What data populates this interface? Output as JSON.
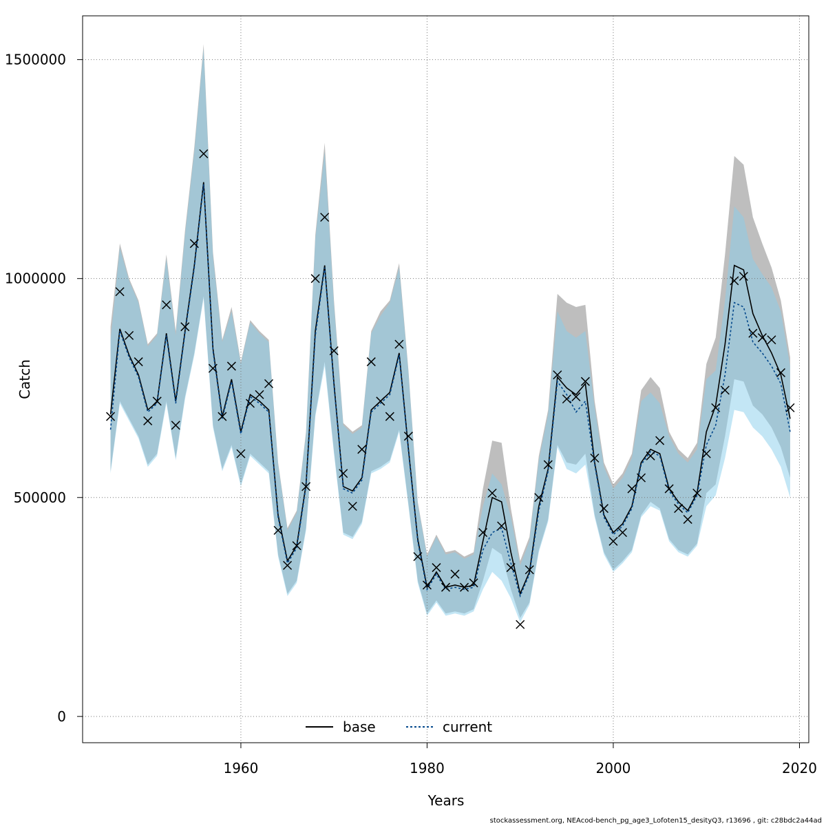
{
  "chart_data": {
    "type": "line",
    "xlabel": "Years",
    "ylabel": "Catch",
    "xlim": [
      1943,
      2021
    ],
    "ylim": [
      -60000,
      1600000
    ],
    "x_ticks": [
      1960,
      1980,
      2000,
      2020
    ],
    "y_ticks": [
      0,
      500000,
      1000000,
      1500000
    ],
    "x_tick_labels": [
      "1960",
      "1980",
      "2000",
      "2020"
    ],
    "y_tick_labels": [
      "0",
      "500000",
      "1000000",
      "1500000"
    ],
    "grid": true,
    "legend_position": "bottom-center",
    "years": [
      1946,
      1947,
      1948,
      1949,
      1950,
      1951,
      1952,
      1953,
      1954,
      1955,
      1956,
      1957,
      1958,
      1959,
      1960,
      1961,
      1962,
      1963,
      1964,
      1965,
      1966,
      1967,
      1968,
      1969,
      1970,
      1971,
      1972,
      1973,
      1974,
      1975,
      1976,
      1977,
      1978,
      1979,
      1980,
      1981,
      1982,
      1983,
      1984,
      1985,
      1986,
      1987,
      1988,
      1989,
      1990,
      1991,
      1992,
      1993,
      1994,
      1995,
      1996,
      1997,
      1998,
      1999,
      2000,
      2001,
      2002,
      2003,
      2004,
      2005,
      2006,
      2007,
      2008,
      2009,
      2010,
      2011,
      2012,
      2013,
      2014,
      2015,
      2016,
      2017,
      2018,
      2019
    ],
    "observed": [
      685000,
      970000,
      870000,
      810000,
      675000,
      720000,
      940000,
      665000,
      890000,
      1080000,
      1285000,
      795000,
      685000,
      800000,
      600000,
      715000,
      735000,
      760000,
      425000,
      345000,
      390000,
      525000,
      1000000,
      1140000,
      835000,
      555000,
      480000,
      610000,
      810000,
      720000,
      685000,
      850000,
      640000,
      365000,
      300000,
      340000,
      295000,
      325000,
      295000,
      305000,
      420000,
      510000,
      435000,
      340000,
      210000,
      335000,
      500000,
      575000,
      780000,
      725000,
      730000,
      765000,
      590000,
      475000,
      400000,
      420000,
      520000,
      545000,
      595000,
      630000,
      520000,
      475000,
      450000,
      510000,
      600000,
      705000,
      745000,
      995000,
      1005000,
      875000,
      865000,
      860000,
      785000,
      705000
    ],
    "series": [
      {
        "name": "base",
        "color": "#000000",
        "band_color": "#bebebe",
        "values": [
          690000,
          885000,
          825000,
          780000,
          700000,
          718000,
          875000,
          720000,
          880000,
          1030000,
          1220000,
          840000,
          685000,
          770000,
          650000,
          735000,
          720000,
          700000,
          460000,
          355000,
          390000,
          530000,
          880000,
          1030000,
          760000,
          525000,
          515000,
          545000,
          700000,
          720000,
          740000,
          830000,
          610000,
          405000,
          295000,
          330000,
          295000,
          300000,
          295000,
          300000,
          400000,
          500000,
          490000,
          375000,
          280000,
          330000,
          480000,
          565000,
          775000,
          750000,
          735000,
          760000,
          580000,
          460000,
          420000,
          440000,
          480000,
          580000,
          610000,
          600000,
          520000,
          490000,
          470000,
          510000,
          650000,
          710000,
          850000,
          1030000,
          1020000,
          920000,
          870000,
          830000,
          780000,
          680000
        ],
        "upper": [
          890000,
          1080000,
          1000000,
          950000,
          850000,
          875000,
          1055000,
          880000,
          1110000,
          1300000,
          1535000,
          1060000,
          860000,
          935000,
          810000,
          905000,
          880000,
          860000,
          580000,
          430000,
          470000,
          650000,
          1100000,
          1310000,
          950000,
          670000,
          650000,
          665000,
          880000,
          925000,
          950000,
          1035000,
          790000,
          490000,
          370000,
          415000,
          375000,
          380000,
          365000,
          375000,
          520000,
          630000,
          625000,
          475000,
          355000,
          410000,
          595000,
          700000,
          965000,
          945000,
          935000,
          940000,
          720000,
          580000,
          530000,
          555000,
          600000,
          745000,
          775000,
          750000,
          650000,
          610000,
          590000,
          625000,
          805000,
          865000,
          1055000,
          1280000,
          1260000,
          1140000,
          1080000,
          1025000,
          950000,
          820000
        ],
        "lower": [
          560000,
          720000,
          680000,
          640000,
          575000,
          600000,
          720000,
          590000,
          730000,
          830000,
          960000,
          665000,
          565000,
          620000,
          530000,
          600000,
          580000,
          560000,
          370000,
          280000,
          310000,
          430000,
          690000,
          810000,
          605000,
          420000,
          410000,
          445000,
          560000,
          570000,
          585000,
          655000,
          485000,
          310000,
          235000,
          265000,
          235000,
          240000,
          235000,
          245000,
          310000,
          385000,
          370000,
          290000,
          225000,
          260000,
          380000,
          450000,
          620000,
          580000,
          575000,
          600000,
          460000,
          375000,
          335000,
          355000,
          380000,
          460000,
          490000,
          475000,
          405000,
          380000,
          370000,
          395000,
          510000,
          530000,
          640000,
          770000,
          765000,
          710000,
          690000,
          660000,
          615000,
          545000
        ]
      },
      {
        "name": "current",
        "color": "#00468b",
        "band_color": "#87ceeb",
        "values": [
          655000,
          880000,
          820000,
          775000,
          695000,
          715000,
          870000,
          715000,
          875000,
          1025000,
          1215000,
          835000,
          680000,
          765000,
          645000,
          730000,
          715000,
          695000,
          455000,
          350000,
          385000,
          525000,
          870000,
          1025000,
          755000,
          520000,
          510000,
          540000,
          695000,
          715000,
          735000,
          825000,
          605000,
          400000,
          290000,
          325000,
          290000,
          295000,
          290000,
          295000,
          380000,
          420000,
          430000,
          350000,
          275000,
          325000,
          470000,
          560000,
          765000,
          735000,
          695000,
          720000,
          575000,
          455000,
          415000,
          435000,
          475000,
          575000,
          605000,
          595000,
          515000,
          485000,
          465000,
          505000,
          620000,
          665000,
          780000,
          945000,
          935000,
          855000,
          830000,
          800000,
          760000,
          650000
        ],
        "upper": [
          860000,
          1070000,
          995000,
          945000,
          845000,
          870000,
          1045000,
          870000,
          1100000,
          1290000,
          1525000,
          1050000,
          855000,
          925000,
          805000,
          900000,
          875000,
          855000,
          575000,
          425000,
          465000,
          645000,
          1090000,
          1290000,
          940000,
          665000,
          645000,
          660000,
          875000,
          915000,
          945000,
          1025000,
          785000,
          485000,
          365000,
          410000,
          370000,
          375000,
          360000,
          370000,
          480000,
          555000,
          530000,
          455000,
          345000,
          400000,
          585000,
          690000,
          925000,
          880000,
          865000,
          880000,
          705000,
          570000,
          520000,
          545000,
          590000,
          720000,
          740000,
          715000,
          640000,
          600000,
          580000,
          610000,
          770000,
          790000,
          950000,
          1165000,
          1140000,
          1045000,
          1010000,
          980000,
          925000,
          800000
        ],
        "lower": [
          555000,
          715000,
          675000,
          635000,
          570000,
          595000,
          715000,
          585000,
          725000,
          825000,
          955000,
          660000,
          560000,
          615000,
          525000,
          595000,
          575000,
          555000,
          365000,
          275000,
          305000,
          425000,
          685000,
          800000,
          600000,
          415000,
          405000,
          440000,
          555000,
          565000,
          580000,
          650000,
          480000,
          305000,
          230000,
          260000,
          230000,
          235000,
          230000,
          240000,
          290000,
          330000,
          310000,
          270000,
          215000,
          255000,
          375000,
          445000,
          615000,
          565000,
          555000,
          575000,
          455000,
          370000,
          330000,
          350000,
          375000,
          455000,
          480000,
          470000,
          400000,
          375000,
          365000,
          390000,
          480000,
          505000,
          590000,
          700000,
          695000,
          660000,
          640000,
          610000,
          570000,
          500000
        ]
      }
    ],
    "observed_marker": "x"
  },
  "footer_text": "stockassessment.org, NEAcod-bench_pg_age3_Lofoten15_desityQ3, r13696 , git: c28bdc2a44ad"
}
